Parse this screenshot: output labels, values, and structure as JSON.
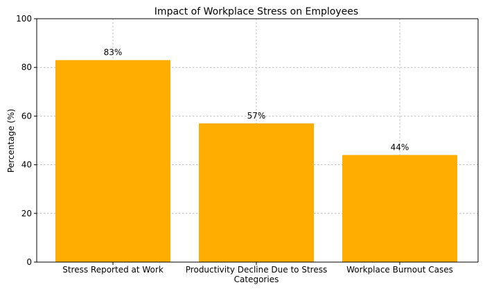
{
  "chart_data": {
    "type": "bar",
    "title": "Impact of Workplace Stress on Employees",
    "xlabel": "Categories",
    "ylabel": "Percentage (%)",
    "categories": [
      "Stress Reported at Work",
      "Productivity Decline Due to Stress",
      "Workplace Burnout Cases"
    ],
    "values": [
      83,
      57,
      44
    ],
    "data_labels": [
      "83%",
      "57%",
      "44%"
    ],
    "ylim": [
      0,
      100
    ],
    "yticks": [
      0,
      20,
      40,
      60,
      80,
      100
    ],
    "grid": true,
    "colors": {
      "bar": "#FFAD00"
    }
  }
}
